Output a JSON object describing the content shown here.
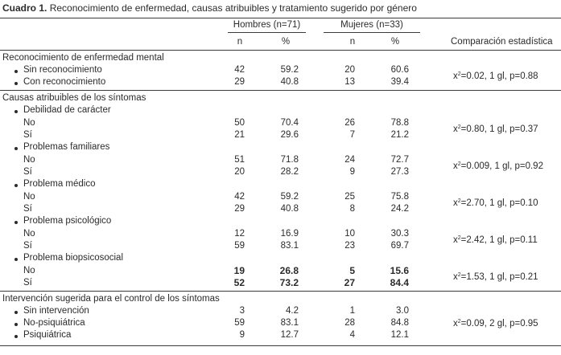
{
  "caption": {
    "label": "Cuadro 1.",
    "text": "Reconocimiento de enfermedad, causas atribuibles y tratamiento sugerido por género"
  },
  "header": {
    "men": "Hombres (n=71)",
    "women": "Mujeres (n=33)",
    "n": "n",
    "pct": "%",
    "stat": "Comparación estadística"
  },
  "sections": [
    {
      "title": "Reconocimiento de enfermedad mental",
      "rows": [
        {
          "label": "Sin reconocimiento",
          "m_n": "42",
          "m_p": "59.2",
          "w_n": "20",
          "w_p": "60.6"
        },
        {
          "label": "Con reconocimiento",
          "m_n": "29",
          "m_p": "40.8",
          "w_n": "13",
          "w_p": "39.4"
        }
      ],
      "stat": {
        "pre": "x",
        "sup": "2",
        "post": "=0.02, 1 gl, p=0.88"
      }
    },
    {
      "title": "Causas atribuibles de los síntomas",
      "groups": [
        {
          "name": "Debilidad de carácter",
          "rows": [
            {
              "label": "No",
              "m_n": "50",
              "m_p": "70.4",
              "w_n": "26",
              "w_p": "78.8"
            },
            {
              "label": "Sí",
              "m_n": "21",
              "m_p": "29.6",
              "w_n": "7",
              "w_p": "21.2"
            }
          ],
          "stat": {
            "pre": "x",
            "sup": "2",
            "post": "=0.80, 1 gl, p=0.37"
          }
        },
        {
          "name": "Problemas familiares",
          "rows": [
            {
              "label": "No",
              "m_n": "51",
              "m_p": "71.8",
              "w_n": "24",
              "w_p": "72.7"
            },
            {
              "label": "Sí",
              "m_n": "20",
              "m_p": "28.2",
              "w_n": "9",
              "w_p": "27.3"
            }
          ],
          "stat": {
            "pre": "x",
            "sup": "2",
            "post": "=0.009, 1 gl, p=0.92"
          }
        },
        {
          "name": "Problema médico",
          "rows": [
            {
              "label": "No",
              "m_n": "42",
              "m_p": "59.2",
              "w_n": "25",
              "w_p": "75.8"
            },
            {
              "label": "Sí",
              "m_n": "29",
              "m_p": "40.8",
              "w_n": "8",
              "w_p": "24.2"
            }
          ],
          "stat": {
            "pre": "x",
            "sup": "2",
            "post": "=2.70, 1 gl, p=0.10"
          }
        },
        {
          "name": "Problema psicológico",
          "rows": [
            {
              "label": "No",
              "m_n": "12",
              "m_p": "16.9",
              "w_n": "10",
              "w_p": "30.3"
            },
            {
              "label": "Sí",
              "m_n": "59",
              "m_p": "83.1",
              "w_n": "23",
              "w_p": "69.7"
            }
          ],
          "stat": {
            "pre": "x",
            "sup": "2",
            "post": "=2.42, 1 gl, p=0.11"
          }
        },
        {
          "name": "Problema biopsicosocial",
          "rows": [
            {
              "label": "No",
              "m_n": "19",
              "m_p": "26.8",
              "w_n": "5",
              "w_p": "15.6"
            },
            {
              "label": "Sí",
              "m_n": "52",
              "m_p": "73.2",
              "w_n": "27",
              "w_p": "84.4"
            }
          ],
          "stat": {
            "pre": "x",
            "sup": "2",
            "post": "=1.53, 1 gl, p=0.21"
          }
        }
      ]
    },
    {
      "title": "Intervención sugerida para el control de los síntomas",
      "rows": [
        {
          "label": "Sin intervención",
          "m_n": "3",
          "m_p": "4.2",
          "w_n": "1",
          "w_p": "3.0"
        },
        {
          "label": "No-psiquiátrica",
          "m_n": "59",
          "m_p": "83.1",
          "w_n": "28",
          "w_p": "84.8"
        },
        {
          "label": "Psiquiátrica",
          "m_n": "9",
          "m_p": "12.7",
          "w_n": "4",
          "w_p": "12.1"
        }
      ],
      "stat": {
        "pre": "x",
        "sup": "2",
        "post": "=0.09, 2 gl, p=0.95"
      }
    }
  ]
}
